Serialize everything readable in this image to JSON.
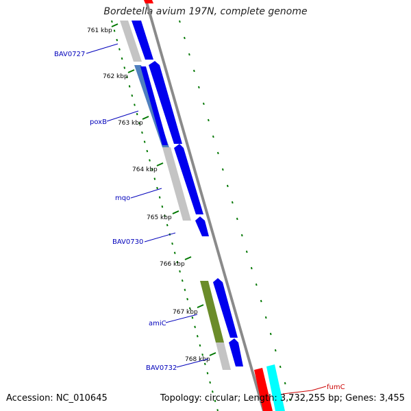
{
  "title": "Bordetella avium 197N, complete genome",
  "footer": {
    "accession": "Accession: NC_010645",
    "topology": "Topology: circular; Length: 3,732,255 bp; Genes: 3,455"
  },
  "colors": {
    "backbone": "#8a8a8a",
    "forward_cds": "#0000ee",
    "reverse_cds": "#0000ee",
    "gc_skew": "#007700",
    "label_blue": "#0000bb",
    "label_red": "#cc0000",
    "highlight_gray": "#c4c4c4",
    "highlight_steel": "#4f7fbf",
    "highlight_olive": "#6b8c2a",
    "red_gene": "#ff0000",
    "cyan_gene": "#00ffff"
  },
  "ticks": [
    "761 kbp",
    "762 kbp",
    "763 kbp",
    "764 kbp",
    "765 kbp",
    "766 kbp",
    "767 kbp",
    "768 kbp"
  ],
  "gene_labels": [
    {
      "text": "BAV0727",
      "color": "blue"
    },
    {
      "text": "poxB",
      "color": "blue"
    },
    {
      "text": "mqo",
      "color": "blue"
    },
    {
      "text": "BAV0730",
      "color": "blue"
    },
    {
      "text": "amiC",
      "color": "blue"
    },
    {
      "text": "BAV0732",
      "color": "blue"
    },
    {
      "text": "fumC",
      "color": "red"
    }
  ]
}
